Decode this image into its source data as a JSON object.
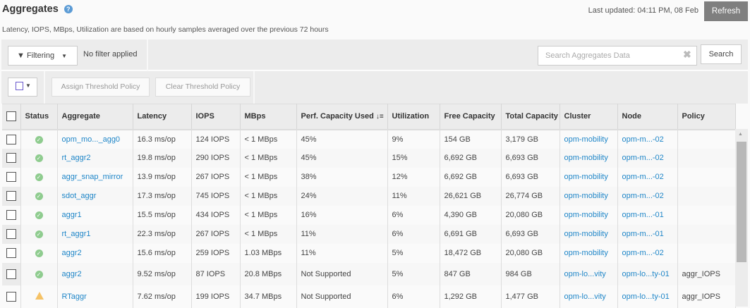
{
  "header": {
    "title": "Aggregates",
    "help_icon": "?",
    "last_updated": "Last updated: 04:11 PM, 08 Feb",
    "refresh_label": "Refresh",
    "subtitle": "Latency, IOPS, MBps, Utilization are based on hourly samples averaged over the previous 72 hours"
  },
  "filter": {
    "button_label": "Filtering",
    "status": "No filter applied",
    "search_placeholder": "Search Aggregates Data",
    "search_label": "Search"
  },
  "actions": {
    "assign": "Assign Threshold Policy",
    "clear": "Clear Threshold Policy"
  },
  "table": {
    "columns": [
      "Status",
      "Aggregate",
      "Latency",
      "IOPS",
      "MBps",
      "Perf. Capacity Used",
      "Utilization",
      "Free Capacity",
      "Total Capacity",
      "Cluster",
      "Node",
      "Policy"
    ],
    "sort_indicator": "↓≡",
    "rows": [
      {
        "status": "ok",
        "aggregate": "opm_mo..._agg0",
        "latency": "16.3 ms/op",
        "iops": "124 IOPS",
        "mbps": "< 1 MBps",
        "perf": "45%",
        "util": "9%",
        "free": "154 GB",
        "total": "3,179 GB",
        "cluster": "opm-mobility",
        "node": "opm-m...-02",
        "policy": ""
      },
      {
        "status": "ok",
        "aggregate": "rt_aggr2",
        "latency": "19.8 ms/op",
        "iops": "290 IOPS",
        "mbps": "< 1 MBps",
        "perf": "45%",
        "util": "15%",
        "free": "6,692 GB",
        "total": "6,693 GB",
        "cluster": "opm-mobility",
        "node": "opm-m...-02",
        "policy": ""
      },
      {
        "status": "ok",
        "aggregate": "aggr_snap_mirror",
        "latency": "13.9 ms/op",
        "iops": "267 IOPS",
        "mbps": "< 1 MBps",
        "perf": "38%",
        "util": "12%",
        "free": "6,692 GB",
        "total": "6,693 GB",
        "cluster": "opm-mobility",
        "node": "opm-m...-02",
        "policy": ""
      },
      {
        "status": "ok",
        "aggregate": "sdot_aggr",
        "latency": "17.3 ms/op",
        "iops": "745 IOPS",
        "mbps": "< 1 MBps",
        "perf": "24%",
        "util": "11%",
        "free": "26,621 GB",
        "total": "26,774 GB",
        "cluster": "opm-mobility",
        "node": "opm-m...-02",
        "policy": ""
      },
      {
        "status": "ok",
        "aggregate": "aggr1",
        "latency": "15.5 ms/op",
        "iops": "434 IOPS",
        "mbps": "< 1 MBps",
        "perf": "16%",
        "util": "6%",
        "free": "4,390 GB",
        "total": "20,080 GB",
        "cluster": "opm-mobility",
        "node": "opm-m...-01",
        "policy": ""
      },
      {
        "status": "ok",
        "aggregate": "rt_aggr1",
        "latency": "22.3 ms/op",
        "iops": "267 IOPS",
        "mbps": "< 1 MBps",
        "perf": "11%",
        "util": "6%",
        "free": "6,691 GB",
        "total": "6,693 GB",
        "cluster": "opm-mobility",
        "node": "opm-m...-01",
        "policy": ""
      },
      {
        "status": "ok",
        "aggregate": "aggr2",
        "latency": "15.6 ms/op",
        "iops": "259 IOPS",
        "mbps": "1.03 MBps",
        "perf": "11%",
        "util": "5%",
        "free": "18,472 GB",
        "total": "20,080 GB",
        "cluster": "opm-mobility",
        "node": "opm-m...-02",
        "policy": ""
      },
      {
        "status": "ok",
        "aggregate": "aggr2",
        "latency": "9.52 ms/op",
        "iops": "87 IOPS",
        "mbps": "20.8 MBps",
        "perf": "Not Supported",
        "util": "5%",
        "free": "847 GB",
        "total": "984 GB",
        "cluster": "opm-lo...vity",
        "node": "opm-lo...ty-01",
        "policy": "aggr_IOPS"
      },
      {
        "status": "warning",
        "aggregate": "RTaggr",
        "latency": "7.62 ms/op",
        "iops": "199 IOPS",
        "mbps": "34.7 MBps",
        "perf": "Not Supported",
        "util": "6%",
        "free": "1,292 GB",
        "total": "1,477 GB",
        "cluster": "opm-lo...vity",
        "node": "opm-lo...ty-01",
        "policy": "aggr_IOPS"
      }
    ]
  },
  "colors": {
    "link": "#1f86c8",
    "ok": "#8fcc8f",
    "warning": "#f5c266",
    "refresh_bg": "#7f7f7f"
  }
}
